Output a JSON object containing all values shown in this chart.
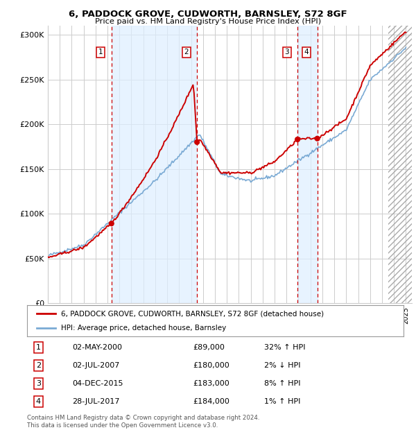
{
  "title": "6, PADDOCK GROVE, CUDWORTH, BARNSLEY, S72 8GF",
  "subtitle": "Price paid vs. HM Land Registry's House Price Index (HPI)",
  "ylim": [
    0,
    310000
  ],
  "yticks": [
    0,
    50000,
    100000,
    150000,
    200000,
    250000,
    300000
  ],
  "ytick_labels": [
    "£0",
    "£50K",
    "£100K",
    "£150K",
    "£200K",
    "£250K",
    "£300K"
  ],
  "sale_dates_num": [
    2000.33,
    2007.5,
    2015.92,
    2017.58
  ],
  "sale_prices": [
    89000,
    180000,
    183000,
    184000
  ],
  "sale_labels": [
    "1",
    "2",
    "3",
    "4"
  ],
  "legend_line1": "6, PADDOCK GROVE, CUDWORTH, BARNSLEY, S72 8GF (detached house)",
  "legend_line2": "HPI: Average price, detached house, Barnsley",
  "table_data": [
    [
      "1",
      "02-MAY-2000",
      "£89,000",
      "32% ↑ HPI"
    ],
    [
      "2",
      "02-JUL-2007",
      "£180,000",
      "2% ↓ HPI"
    ],
    [
      "3",
      "04-DEC-2015",
      "£183,000",
      "8% ↑ HPI"
    ],
    [
      "4",
      "28-JUL-2017",
      "£184,000",
      "1% ↑ HPI"
    ]
  ],
  "footnote": "Contains HM Land Registry data © Crown copyright and database right 2024.\nThis data is licensed under the Open Government Licence v3.0.",
  "red_color": "#cc0000",
  "blue_color": "#7aaad4",
  "shading_color": "#ddeeff",
  "background_color": "#ffffff",
  "grid_color": "#cccccc"
}
